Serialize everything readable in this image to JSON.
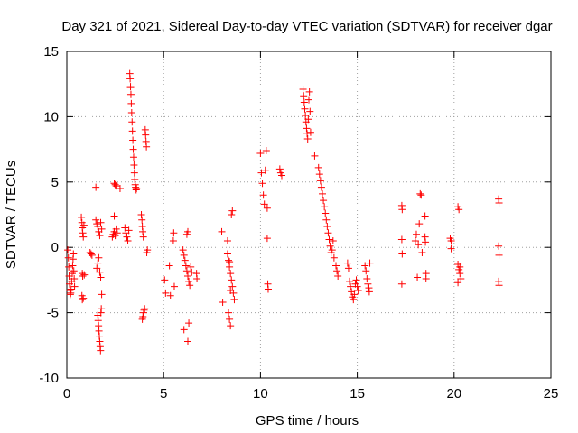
{
  "chart_data": {
    "type": "scatter",
    "title": "Day 321 of 2021, Sidereal Day-to-day VTEC variation (SDTVAR) for receiver dgar",
    "xlabel": "GPS time / hours",
    "ylabel": "SDTVAR / TECUs",
    "xlim": [
      0,
      25
    ],
    "ylim": [
      -10,
      15
    ],
    "xticks": [
      0,
      5,
      10,
      15,
      20,
      25
    ],
    "yticks": [
      -10,
      -5,
      0,
      5,
      10,
      15
    ],
    "xtick_labels": [
      "0",
      "5",
      "10",
      "15",
      "20",
      "25"
    ],
    "ytick_labels": [
      "-10",
      "-5",
      "0",
      "5",
      "10",
      "15"
    ],
    "grid": true,
    "marker": "+",
    "color": "#ff0000",
    "series": [
      {
        "name": "SDTVAR",
        "points": [
          [
            0.05,
            -0.2
          ],
          [
            0.08,
            -0.8
          ],
          [
            0.1,
            -1.5
          ],
          [
            0.12,
            -2.2
          ],
          [
            0.14,
            -2.8
          ],
          [
            0.16,
            -3.3
          ],
          [
            0.18,
            -3.6
          ],
          [
            0.2,
            -3.5
          ],
          [
            0.22,
            -3.2
          ],
          [
            0.25,
            -2.6
          ],
          [
            0.28,
            -2.0
          ],
          [
            0.3,
            -1.4
          ],
          [
            0.32,
            -0.9
          ],
          [
            0.34,
            -0.5
          ],
          [
            0.36,
            -1.8
          ],
          [
            0.38,
            -2.4
          ],
          [
            0.4,
            -3.0
          ],
          [
            0.75,
            2.3
          ],
          [
            0.78,
            1.9
          ],
          [
            0.8,
            1.5
          ],
          [
            0.82,
            1.1
          ],
          [
            0.85,
            0.8
          ],
          [
            0.88,
            1.7
          ],
          [
            0.8,
            -2.0
          ],
          [
            0.82,
            -2.2
          ],
          [
            0.78,
            -3.7
          ],
          [
            0.8,
            -4.0
          ],
          [
            0.85,
            -3.9
          ],
          [
            0.9,
            -2.1
          ],
          [
            1.2,
            -0.4
          ],
          [
            1.25,
            -0.5
          ],
          [
            1.3,
            -0.6
          ],
          [
            1.5,
            2.1
          ],
          [
            1.55,
            1.8
          ],
          [
            1.6,
            1.6
          ],
          [
            1.65,
            1.2
          ],
          [
            1.7,
            0.9
          ],
          [
            1.75,
            1.9
          ],
          [
            1.8,
            1.4
          ],
          [
            1.5,
            4.6
          ],
          [
            1.55,
            -1.6
          ],
          [
            1.6,
            -1.2
          ],
          [
            1.65,
            -0.8
          ],
          [
            1.7,
            -1.9
          ],
          [
            1.75,
            -2.3
          ],
          [
            1.6,
            -5.2
          ],
          [
            1.62,
            -5.6
          ],
          [
            1.64,
            -6.0
          ],
          [
            1.66,
            -6.4
          ],
          [
            1.68,
            -6.8
          ],
          [
            1.7,
            -7.2
          ],
          [
            1.72,
            -7.6
          ],
          [
            1.74,
            -7.9
          ],
          [
            1.76,
            -5.0
          ],
          [
            1.78,
            -4.7
          ],
          [
            1.8,
            -3.6
          ],
          [
            2.35,
            0.8
          ],
          [
            2.4,
            1.0
          ],
          [
            2.45,
            1.2
          ],
          [
            2.5,
            0.9
          ],
          [
            2.55,
            1.4
          ],
          [
            2.6,
            1.1
          ],
          [
            2.45,
            4.9
          ],
          [
            2.5,
            4.8
          ],
          [
            2.55,
            4.7
          ],
          [
            2.45,
            2.4
          ],
          [
            2.75,
            4.5
          ],
          [
            3.0,
            1.5
          ],
          [
            3.05,
            1.1
          ],
          [
            3.1,
            0.8
          ],
          [
            3.15,
            0.5
          ],
          [
            3.2,
            1.3
          ],
          [
            3.25,
            13.3
          ],
          [
            3.27,
            12.9
          ],
          [
            3.29,
            12.3
          ],
          [
            3.31,
            11.7
          ],
          [
            3.33,
            11.0
          ],
          [
            3.35,
            10.3
          ],
          [
            3.37,
            9.6
          ],
          [
            3.39,
            8.9
          ],
          [
            3.41,
            8.2
          ],
          [
            3.43,
            7.5
          ],
          [
            3.45,
            6.9
          ],
          [
            3.47,
            6.3
          ],
          [
            3.49,
            5.7
          ],
          [
            3.51,
            5.2
          ],
          [
            3.53,
            4.8
          ],
          [
            3.55,
            4.6
          ],
          [
            3.58,
            4.4
          ],
          [
            3.6,
            4.5
          ],
          [
            3.85,
            2.5
          ],
          [
            3.88,
            2.1
          ],
          [
            3.9,
            1.6
          ],
          [
            3.92,
            1.2
          ],
          [
            3.95,
            0.8
          ],
          [
            3.9,
            -5.5
          ],
          [
            3.93,
            -5.3
          ],
          [
            3.96,
            -5.0
          ],
          [
            3.99,
            -4.8
          ],
          [
            4.02,
            -4.7
          ],
          [
            4.05,
            9.0
          ],
          [
            4.07,
            8.6
          ],
          [
            4.09,
            8.1
          ],
          [
            4.11,
            7.7
          ],
          [
            4.13,
            -0.4
          ],
          [
            4.16,
            -0.2
          ],
          [
            5.05,
            -2.5
          ],
          [
            5.1,
            -3.5
          ],
          [
            5.3,
            -1.4
          ],
          [
            5.35,
            -3.7
          ],
          [
            5.5,
            0.5
          ],
          [
            5.52,
            1.1
          ],
          [
            5.55,
            -3.0
          ],
          [
            6.0,
            -0.2
          ],
          [
            6.05,
            -0.6
          ],
          [
            6.1,
            -1.0
          ],
          [
            6.15,
            -1.4
          ],
          [
            6.2,
            -1.8
          ],
          [
            6.25,
            -2.2
          ],
          [
            6.3,
            -2.6
          ],
          [
            6.35,
            -2.9
          ],
          [
            6.4,
            -1.5
          ],
          [
            6.45,
            -1.9
          ],
          [
            6.2,
            1.0
          ],
          [
            6.25,
            1.2
          ],
          [
            6.05,
            -6.3
          ],
          [
            6.3,
            -5.8
          ],
          [
            6.25,
            -7.2
          ],
          [
            6.7,
            -2.0
          ],
          [
            6.72,
            -2.4
          ],
          [
            8.0,
            1.2
          ],
          [
            8.05,
            -4.2
          ],
          [
            8.3,
            -0.5
          ],
          [
            8.35,
            -1.0
          ],
          [
            8.4,
            -1.5
          ],
          [
            8.45,
            -2.0
          ],
          [
            8.5,
            -2.5
          ],
          [
            8.55,
            -3.0
          ],
          [
            8.6,
            -3.5
          ],
          [
            8.65,
            -4.0
          ],
          [
            8.3,
            0.5
          ],
          [
            8.35,
            -5.0
          ],
          [
            8.4,
            -5.5
          ],
          [
            8.45,
            -6.0
          ],
          [
            8.5,
            2.5
          ],
          [
            8.55,
            2.8
          ],
          [
            8.4,
            -1.1
          ],
          [
            8.45,
            -3.3
          ],
          [
            10.0,
            7.2
          ],
          [
            10.05,
            5.7
          ],
          [
            10.1,
            4.9
          ],
          [
            10.15,
            4.0
          ],
          [
            10.2,
            3.3
          ],
          [
            10.25,
            5.9
          ],
          [
            10.3,
            7.4
          ],
          [
            10.35,
            3.0
          ],
          [
            10.38,
            -2.8
          ],
          [
            10.4,
            -3.2
          ],
          [
            10.35,
            0.7
          ],
          [
            11.0,
            6.0
          ],
          [
            11.05,
            5.7
          ],
          [
            11.1,
            5.5
          ],
          [
            12.2,
            12.1
          ],
          [
            12.23,
            11.6
          ],
          [
            12.26,
            11.1
          ],
          [
            12.29,
            10.6
          ],
          [
            12.32,
            10.1
          ],
          [
            12.35,
            9.6
          ],
          [
            12.38,
            9.1
          ],
          [
            12.41,
            8.7
          ],
          [
            12.44,
            8.3
          ],
          [
            12.47,
            9.8
          ],
          [
            12.5,
            11.3
          ],
          [
            12.53,
            11.9
          ],
          [
            12.56,
            10.4
          ],
          [
            12.59,
            8.8
          ],
          [
            12.8,
            7.0
          ],
          [
            13.0,
            6.1
          ],
          [
            13.05,
            5.6
          ],
          [
            13.1,
            5.1
          ],
          [
            13.15,
            4.6
          ],
          [
            13.2,
            4.1
          ],
          [
            13.25,
            3.6
          ],
          [
            13.3,
            3.1
          ],
          [
            13.35,
            2.6
          ],
          [
            13.4,
            2.1
          ],
          [
            13.45,
            1.6
          ],
          [
            13.5,
            1.1
          ],
          [
            13.55,
            0.6
          ],
          [
            13.6,
            0.1
          ],
          [
            13.65,
            -0.4
          ],
          [
            13.7,
            -0.2
          ],
          [
            13.75,
            0.5
          ],
          [
            13.8,
            -0.8
          ],
          [
            13.9,
            -1.4
          ],
          [
            13.95,
            -1.8
          ],
          [
            14.0,
            -2.2
          ],
          [
            14.5,
            -1.2
          ],
          [
            14.55,
            -1.6
          ],
          [
            14.6,
            -2.6
          ],
          [
            14.65,
            -3.0
          ],
          [
            14.7,
            -3.4
          ],
          [
            14.75,
            -3.8
          ],
          [
            14.8,
            -4.0
          ],
          [
            14.85,
            -3.6
          ],
          [
            14.9,
            -2.8
          ],
          [
            14.95,
            -2.5
          ],
          [
            15.0,
            -3.0
          ],
          [
            15.05,
            -3.3
          ],
          [
            15.4,
            -1.4
          ],
          [
            15.45,
            -1.8
          ],
          [
            15.5,
            -2.4
          ],
          [
            15.55,
            -2.8
          ],
          [
            15.6,
            -3.1
          ],
          [
            15.62,
            -3.4
          ],
          [
            15.65,
            -1.2
          ],
          [
            17.3,
            3.2
          ],
          [
            17.32,
            2.9
          ],
          [
            17.3,
            0.6
          ],
          [
            17.32,
            -0.5
          ],
          [
            17.3,
            -2.8
          ],
          [
            18.0,
            0.5
          ],
          [
            18.05,
            1.0
          ],
          [
            18.1,
            -2.3
          ],
          [
            18.15,
            0.2
          ],
          [
            18.2,
            1.8
          ],
          [
            18.25,
            4.1
          ],
          [
            18.3,
            4.0
          ],
          [
            18.35,
            -0.4
          ],
          [
            18.5,
            2.4
          ],
          [
            18.55,
            -2.0
          ],
          [
            18.5,
            0.8
          ],
          [
            18.52,
            0.4
          ],
          [
            18.55,
            -2.4
          ],
          [
            19.8,
            0.7
          ],
          [
            19.85,
            0.5
          ],
          [
            19.85,
            -0.1
          ],
          [
            20.2,
            3.1
          ],
          [
            20.25,
            2.9
          ],
          [
            20.2,
            -1.3
          ],
          [
            20.25,
            -1.7
          ],
          [
            20.3,
            -2.0
          ],
          [
            20.35,
            -2.4
          ],
          [
            20.2,
            -2.7
          ],
          [
            20.3,
            -1.5
          ],
          [
            22.3,
            3.7
          ],
          [
            22.32,
            3.4
          ],
          [
            22.3,
            0.1
          ],
          [
            22.32,
            -0.6
          ],
          [
            22.3,
            -2.6
          ],
          [
            22.32,
            -2.9
          ]
        ]
      }
    ]
  }
}
